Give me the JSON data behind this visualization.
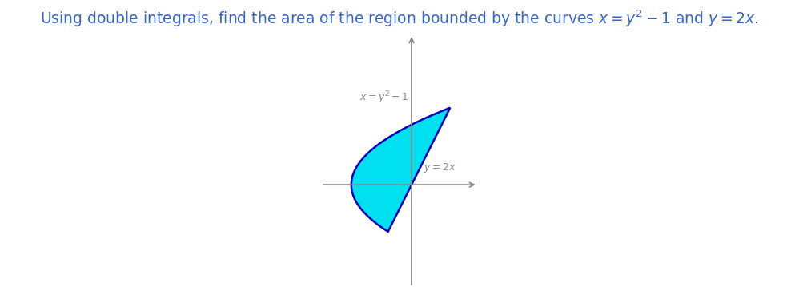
{
  "title": "Using double integrals, find the area of the region bounded by the curves $x = y^2 - 1$ and $y = 2x$.",
  "title_color": "#3366cc",
  "title_fontsize": 13.5,
  "curve1_label": "$x = y^2 - 1$",
  "curve2_label": "$y = 2x$",
  "fill_color": "#00e0f0",
  "fill_alpha": 1.0,
  "fill_edge_color": "#0000bb",
  "fill_edge_width": 1.8,
  "axis_color": "#888888",
  "label_color": "#888888",
  "label_fontsize": 9,
  "x_range": [
    -1.5,
    1.1
  ],
  "y_range": [
    -1.7,
    2.5
  ],
  "fig_width": 9.98,
  "fig_height": 3.59,
  "dpi": 100
}
